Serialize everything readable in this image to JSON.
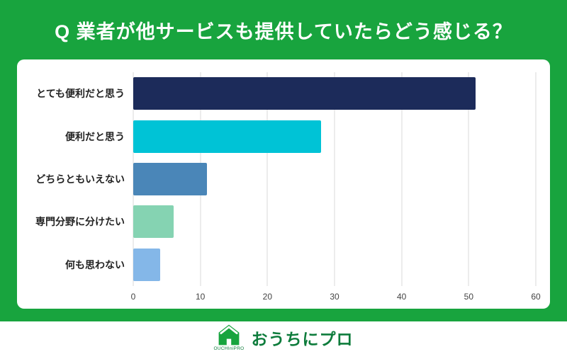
{
  "header": {
    "title": "Q 業者が他サービスも提供していたらどう感じる？"
  },
  "chart_data": {
    "type": "bar",
    "orientation": "horizontal",
    "title": "",
    "categories": [
      "とても便利だと思う",
      "便利だと思う",
      "どちらともいえない",
      "専門分野に分けたい",
      "何も思わない"
    ],
    "values": [
      51,
      28,
      11,
      6,
      4
    ],
    "bar_colors": [
      "#1C2B5A",
      "#00C3D6",
      "#4A86B8",
      "#85D3B2",
      "#84B7E8"
    ],
    "xlim": [
      0,
      60
    ],
    "x_ticks": [
      0,
      10,
      20,
      30,
      40,
      50,
      60
    ],
    "grid": true,
    "legend": "none"
  },
  "footer": {
    "logo_text": "おうちにプロ",
    "logo_sub": "OUCHIniPRO"
  },
  "colors": {
    "background": "#18A43E",
    "card": "#FFFFFF",
    "grid": "#D8D8D8",
    "label_text": "#222222",
    "tick_text": "#444444",
    "footer_text": "#0E7C3C"
  }
}
